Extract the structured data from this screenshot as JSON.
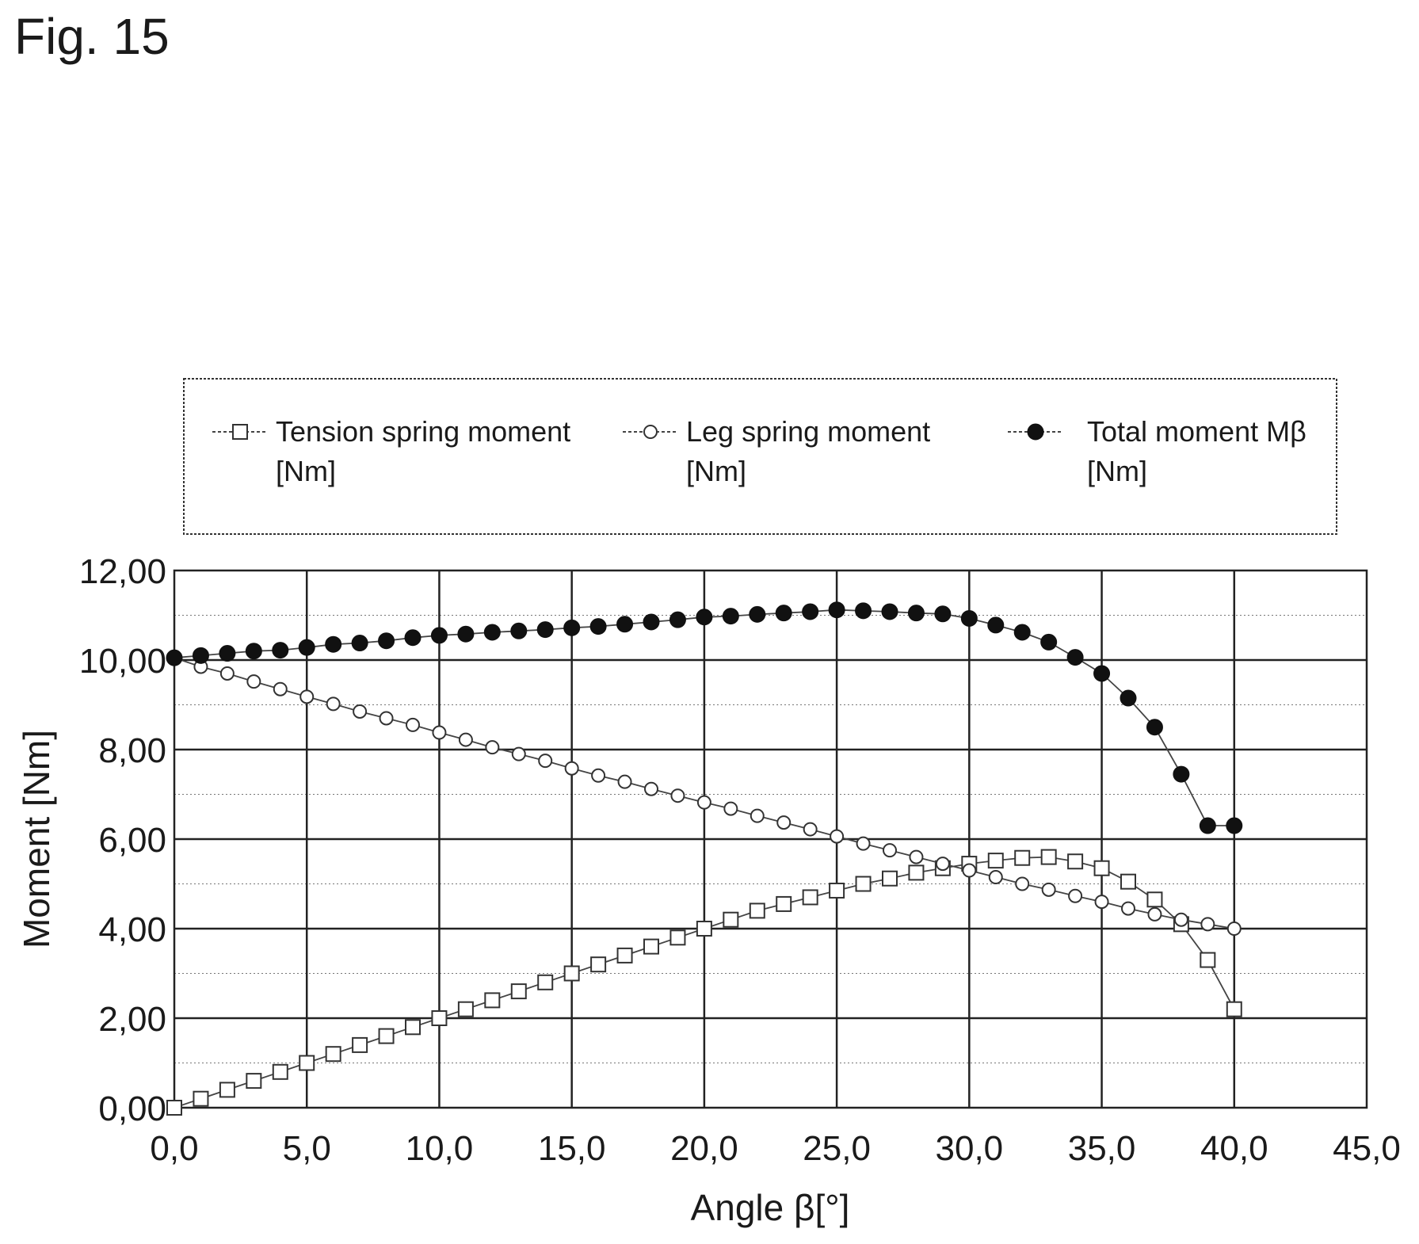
{
  "figure": {
    "label": "Fig. 15"
  },
  "chart_data": {
    "type": "line",
    "xlabel": "Angle β[°]",
    "ylabel": "Moment [Nm]",
    "xlim": [
      0,
      45
    ],
    "ylim": [
      0,
      12
    ],
    "xticks": [
      0,
      5,
      10,
      15,
      20,
      25,
      30,
      35,
      40,
      45
    ],
    "xtick_labels": [
      "0,0",
      "5,0",
      "10,0",
      "15,0",
      "20,0",
      "25,0",
      "30,0",
      "35,0",
      "40,0",
      "45,0"
    ],
    "yticks": [
      0,
      2,
      4,
      6,
      8,
      10,
      12
    ],
    "ytick_labels": [
      "0,00",
      "2,00",
      "4,00",
      "6,00",
      "8,00",
      "10,00",
      "12,00"
    ],
    "grid": true,
    "legend_position": "top",
    "series": [
      {
        "name": "Tension spring moment [Nm]",
        "legend_lines": [
          "Tension spring moment",
          "[Nm]"
        ],
        "marker": "square-open",
        "x": [
          0,
          1,
          2,
          3,
          4,
          5,
          6,
          7,
          8,
          9,
          10,
          11,
          12,
          13,
          14,
          15,
          16,
          17,
          18,
          19,
          20,
          21,
          22,
          23,
          24,
          25,
          26,
          27,
          28,
          29,
          30,
          31,
          32,
          33,
          34,
          35,
          36,
          37,
          38,
          39,
          40
        ],
        "y": [
          0.0,
          0.2,
          0.4,
          0.6,
          0.8,
          1.0,
          1.2,
          1.4,
          1.6,
          1.8,
          2.0,
          2.2,
          2.4,
          2.6,
          2.8,
          3.0,
          3.2,
          3.4,
          3.6,
          3.8,
          4.0,
          4.2,
          4.4,
          4.55,
          4.7,
          4.85,
          5.0,
          5.12,
          5.25,
          5.35,
          5.45,
          5.52,
          5.58,
          5.6,
          5.5,
          5.35,
          5.05,
          4.65,
          4.1,
          3.3,
          2.2
        ]
      },
      {
        "name": "Leg spring moment [Nm]",
        "legend_lines": [
          "Leg spring moment",
          "[Nm]"
        ],
        "marker": "circle-open",
        "x": [
          0,
          1,
          2,
          3,
          4,
          5,
          6,
          7,
          8,
          9,
          10,
          11,
          12,
          13,
          14,
          15,
          16,
          17,
          18,
          19,
          20,
          21,
          22,
          23,
          24,
          25,
          26,
          27,
          28,
          29,
          30,
          31,
          32,
          33,
          34,
          35,
          36,
          37,
          38,
          39,
          40
        ],
        "y": [
          10.05,
          9.85,
          9.7,
          9.52,
          9.35,
          9.18,
          9.02,
          8.85,
          8.7,
          8.55,
          8.38,
          8.22,
          8.05,
          7.9,
          7.75,
          7.58,
          7.42,
          7.28,
          7.12,
          6.97,
          6.82,
          6.68,
          6.52,
          6.37,
          6.22,
          6.06,
          5.9,
          5.75,
          5.6,
          5.45,
          5.3,
          5.15,
          5.0,
          4.87,
          4.73,
          4.6,
          4.45,
          4.32,
          4.2,
          4.1,
          4.0
        ]
      },
      {
        "name": "Total moment Mβ [Nm]",
        "legend_lines": [
          "Total moment Mβ",
          "[Nm]"
        ],
        "marker": "circle-filled",
        "x": [
          0,
          1,
          2,
          3,
          4,
          5,
          6,
          7,
          8,
          9,
          10,
          11,
          12,
          13,
          14,
          15,
          16,
          17,
          18,
          19,
          20,
          21,
          22,
          23,
          24,
          25,
          26,
          27,
          28,
          29,
          30,
          31,
          32,
          33,
          34,
          35,
          36,
          37,
          38,
          39,
          40
        ],
        "y": [
          10.05,
          10.1,
          10.15,
          10.2,
          10.22,
          10.28,
          10.35,
          10.38,
          10.43,
          10.5,
          10.55,
          10.58,
          10.62,
          10.65,
          10.68,
          10.72,
          10.75,
          10.8,
          10.85,
          10.9,
          10.96,
          10.98,
          11.02,
          11.05,
          11.08,
          11.12,
          11.1,
          11.08,
          11.05,
          11.03,
          10.93,
          10.78,
          10.62,
          10.4,
          10.06,
          9.7,
          9.15,
          8.5,
          7.45,
          6.3,
          6.3
        ]
      }
    ]
  }
}
